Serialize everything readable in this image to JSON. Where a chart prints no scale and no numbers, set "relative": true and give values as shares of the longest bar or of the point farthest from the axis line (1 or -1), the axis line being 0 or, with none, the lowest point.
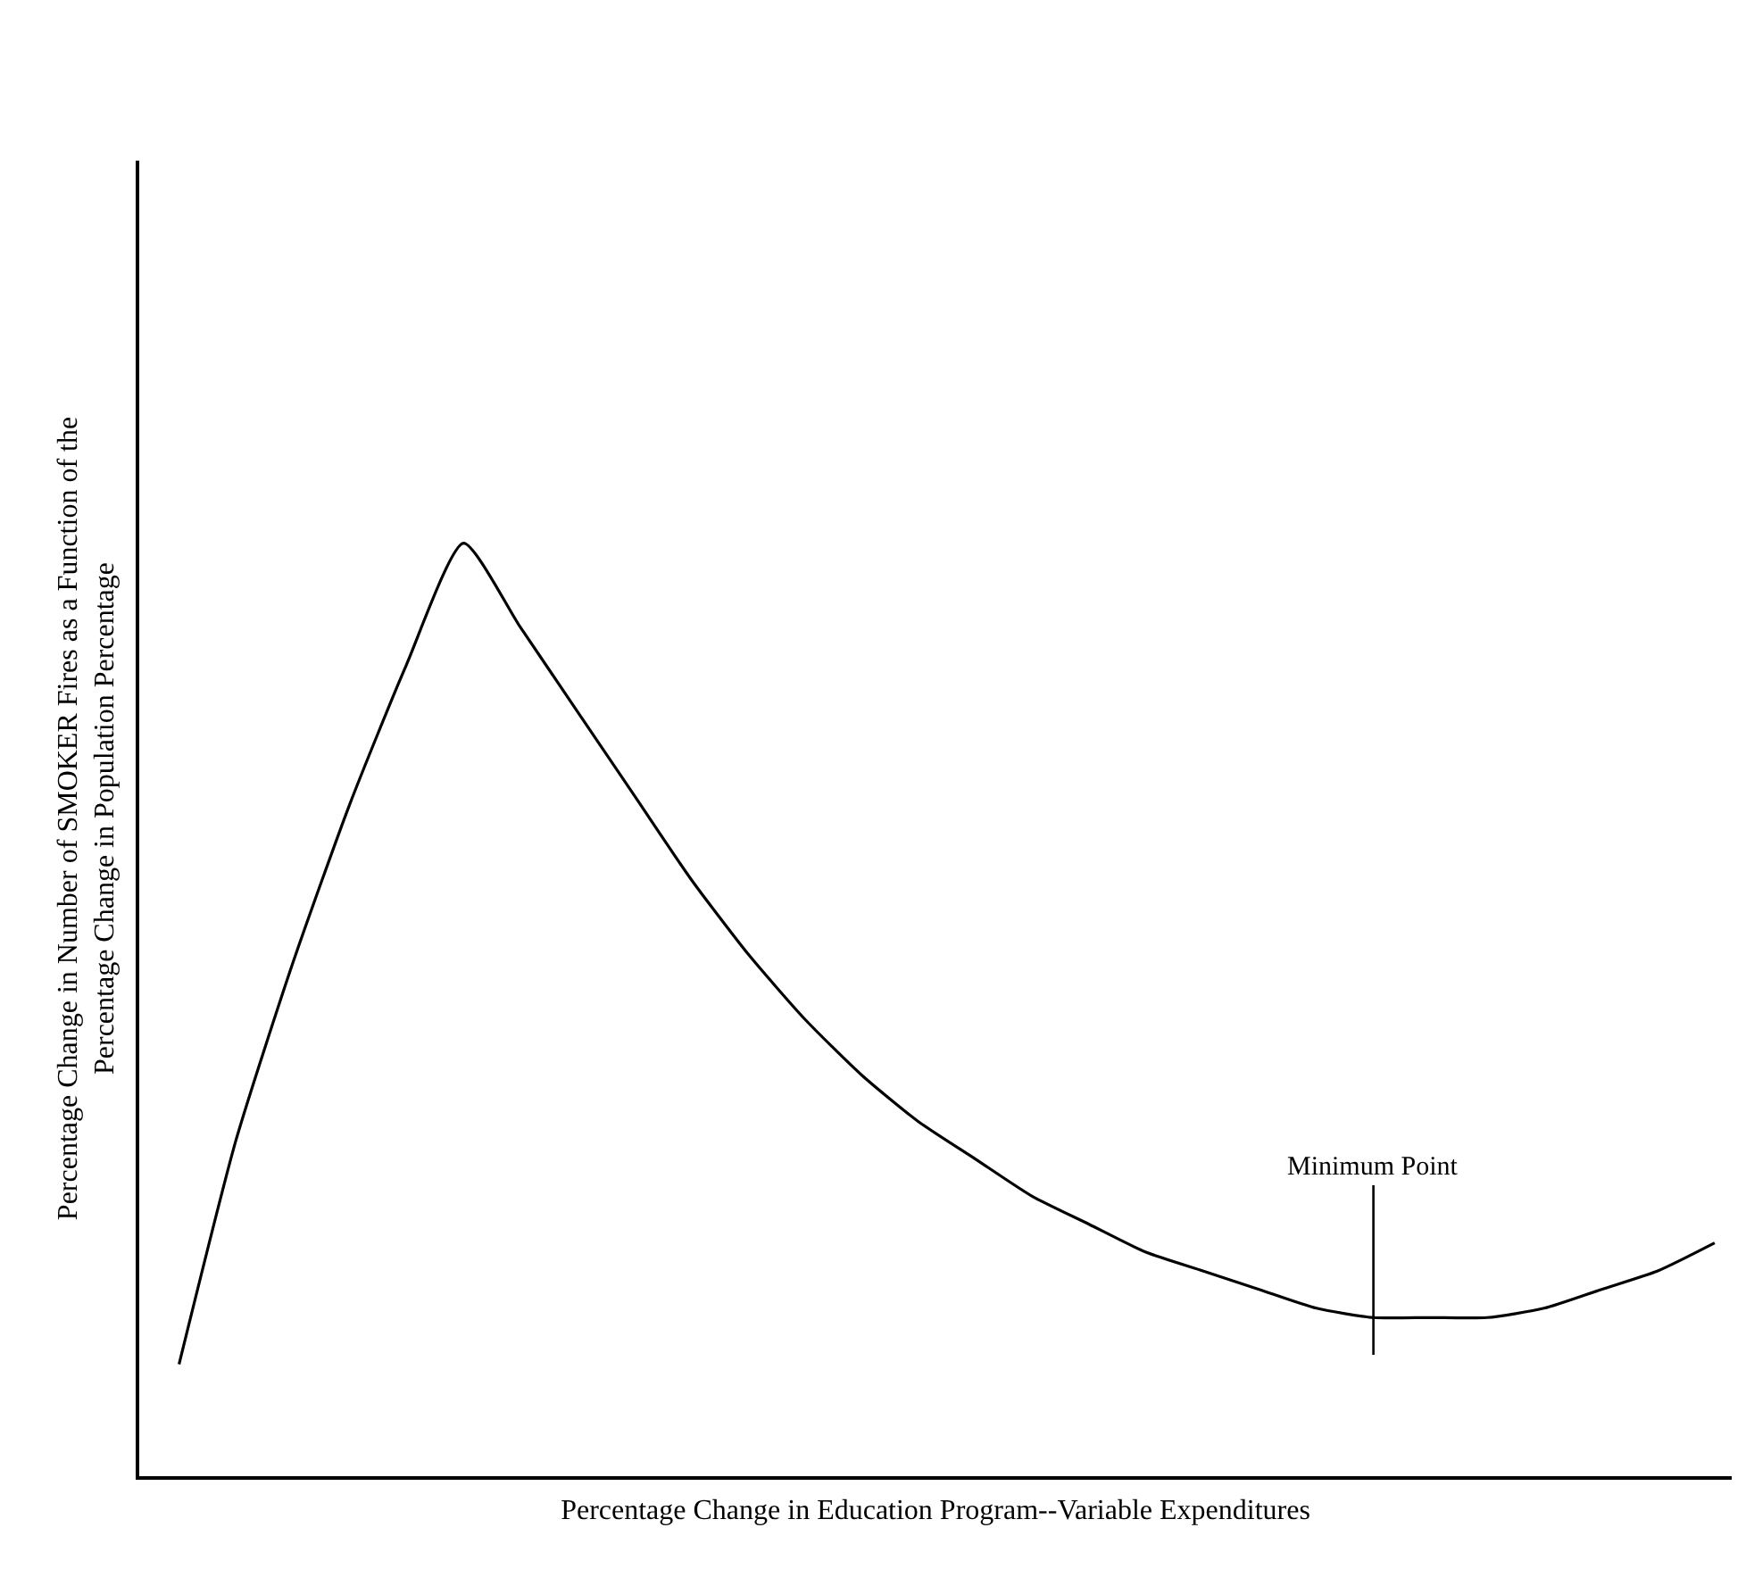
{
  "chart_data": {
    "type": "line",
    "relative": true,
    "xlabel": "Percentage Change in Education Program--Variable Expenditures",
    "ylabel": "Percentage Change in Number of SMOKER Fires as a Function of the\nPercentage Change in Population Percentage",
    "categories": [
      null,
      null,
      null,
      null,
      null,
      null,
      null,
      null,
      null,
      null,
      null,
      null,
      null,
      null,
      null,
      null,
      null,
      null,
      null,
      null,
      null,
      null,
      null,
      null,
      null,
      null,
      null,
      null
    ],
    "series": [
      {
        "color": "#000000",
        "values": [
          0.12,
          0.36,
          0.55,
          0.72,
          0.87,
          1.0,
          0.91,
          0.82,
          0.73,
          0.64,
          0.56,
          0.49,
          0.43,
          0.38,
          0.34,
          0.3,
          0.27,
          0.24,
          0.22,
          0.2,
          0.18,
          0.17,
          0.17,
          0.17,
          0.18,
          0.2,
          0.22,
          0.25
        ]
      }
    ],
    "annotations": [
      "Minimum Point"
    ],
    "marker": "none",
    "line_style": "solid"
  }
}
